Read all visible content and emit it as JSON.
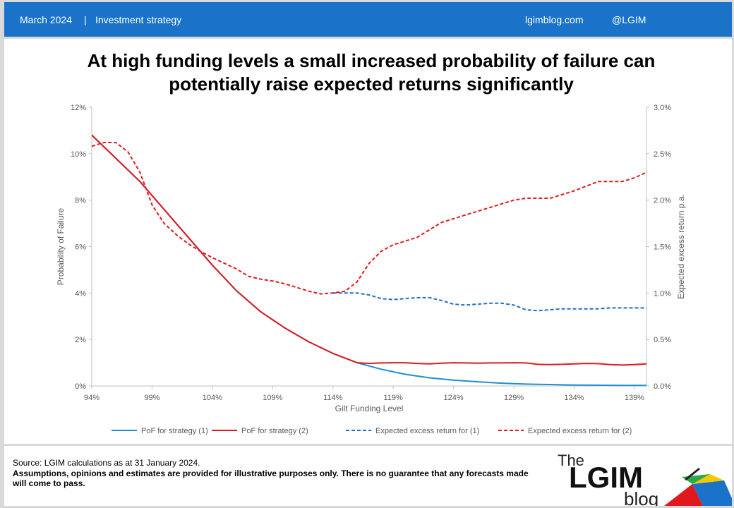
{
  "header": {
    "date": "March 2024",
    "separator": "|",
    "category": "Investment strategy",
    "site": "lgimblog.com",
    "handle": "@LGIM"
  },
  "title_lines": [
    "At high funding levels a small increased probability of failure can",
    "potentially raise expected returns significantly"
  ],
  "chart_data": {
    "type": "line",
    "xlabel": "Gilt Funding Level",
    "ylabel": "Probability of Failure",
    "y2label": "Expected excess return p.a.",
    "xlim": [
      94,
      140
    ],
    "ylim": [
      0,
      12
    ],
    "y2lim": [
      0,
      3.0
    ],
    "xticks": [
      "94%",
      "99%",
      "104%",
      "109%",
      "114%",
      "119%",
      "124%",
      "129%",
      "134%",
      "139%"
    ],
    "yticks": [
      "0%",
      "2%",
      "4%",
      "6%",
      "8%",
      "10%",
      "12%"
    ],
    "y2ticks": [
      "0.0%",
      "0.5%",
      "1.0%",
      "1.5%",
      "2.0%",
      "2.5%",
      "3.0%"
    ],
    "legend": "bottom",
    "series": [
      {
        "name": "PoF for strategy (1)",
        "axis": "left",
        "color": "#1f8fcf",
        "dash": false,
        "x": [
          94,
          96,
          98,
          100,
          102,
          104,
          106,
          108,
          110,
          112,
          114,
          116,
          118,
          120,
          122,
          124,
          126,
          128,
          130,
          132,
          134,
          136,
          138,
          140
        ],
        "y": [
          10.8,
          9.8,
          8.8,
          7.6,
          6.4,
          5.2,
          4.1,
          3.2,
          2.5,
          1.9,
          1.4,
          1.0,
          0.72,
          0.5,
          0.35,
          0.25,
          0.18,
          0.12,
          0.08,
          0.06,
          0.04,
          0.03,
          0.02,
          0.02
        ]
      },
      {
        "name": "PoF for strategy (2)",
        "axis": "left",
        "color": "#e0191e",
        "dash": false,
        "x": [
          94,
          96,
          98,
          100,
          102,
          104,
          106,
          108,
          110,
          112,
          114,
          116,
          117,
          118,
          119,
          120,
          121,
          122,
          123,
          124,
          125,
          126,
          127,
          128,
          129,
          130,
          131,
          132,
          133,
          134,
          135,
          136,
          137,
          138,
          139,
          140
        ],
        "y": [
          10.8,
          9.8,
          8.8,
          7.6,
          6.4,
          5.2,
          4.1,
          3.2,
          2.5,
          1.9,
          1.4,
          1.0,
          0.97,
          0.99,
          1.0,
          1.0,
          0.97,
          0.95,
          0.98,
          1.0,
          0.99,
          0.98,
          0.99,
          0.99,
          1.0,
          0.99,
          0.93,
          0.92,
          0.93,
          0.95,
          0.97,
          0.96,
          0.92,
          0.9,
          0.92,
          0.95
        ]
      },
      {
        "name": "Expected excess return for (1)",
        "axis": "right",
        "color": "#1f6fc0",
        "dash": true,
        "x": [
          114,
          115,
          116,
          117,
          118,
          119,
          120,
          121,
          122,
          123,
          124,
          125,
          126,
          127,
          128,
          129,
          130,
          131,
          132,
          133,
          134,
          135,
          136,
          137,
          138,
          139,
          140
        ],
        "y": [
          1.0,
          1.0,
          1.0,
          0.98,
          0.94,
          0.93,
          0.94,
          0.95,
          0.95,
          0.92,
          0.88,
          0.87,
          0.88,
          0.89,
          0.89,
          0.87,
          0.82,
          0.81,
          0.82,
          0.83,
          0.83,
          0.83,
          0.83,
          0.84,
          0.84,
          0.84,
          0.84
        ]
      },
      {
        "name": "Expected excess return for (2)",
        "axis": "right",
        "color": "#e0191e",
        "dash": true,
        "x": [
          94,
          95,
          96,
          97,
          98,
          99,
          100,
          101,
          102,
          103,
          104,
          105,
          106,
          107,
          108,
          109,
          110,
          111,
          112,
          113,
          114,
          115,
          116,
          117,
          118,
          119,
          120,
          121,
          122,
          123,
          124,
          125,
          126,
          127,
          128,
          129,
          130,
          131,
          132,
          133,
          134,
          135,
          136,
          137,
          138,
          139,
          140
        ],
        "y": [
          2.58,
          2.62,
          2.62,
          2.52,
          2.3,
          1.95,
          1.75,
          1.63,
          1.53,
          1.45,
          1.38,
          1.32,
          1.26,
          1.18,
          1.15,
          1.13,
          1.1,
          1.06,
          1.02,
          0.99,
          1.0,
          1.02,
          1.12,
          1.32,
          1.45,
          1.52,
          1.56,
          1.6,
          1.68,
          1.76,
          1.8,
          1.84,
          1.88,
          1.92,
          1.96,
          2.0,
          2.02,
          2.02,
          2.02,
          2.06,
          2.1,
          2.15,
          2.2,
          2.2,
          2.2,
          2.24,
          2.3
        ]
      }
    ]
  },
  "footer": {
    "source": "Source: LGIM calculations as at 31 January 2024.",
    "disclaimer": "Assumptions, opinions and estimates are provided for illustrative purposes only. There is no guarantee that any forecasts made will come to pass."
  },
  "logo": {
    "the": "The",
    "name": "LGIM",
    "blog": "blog"
  }
}
